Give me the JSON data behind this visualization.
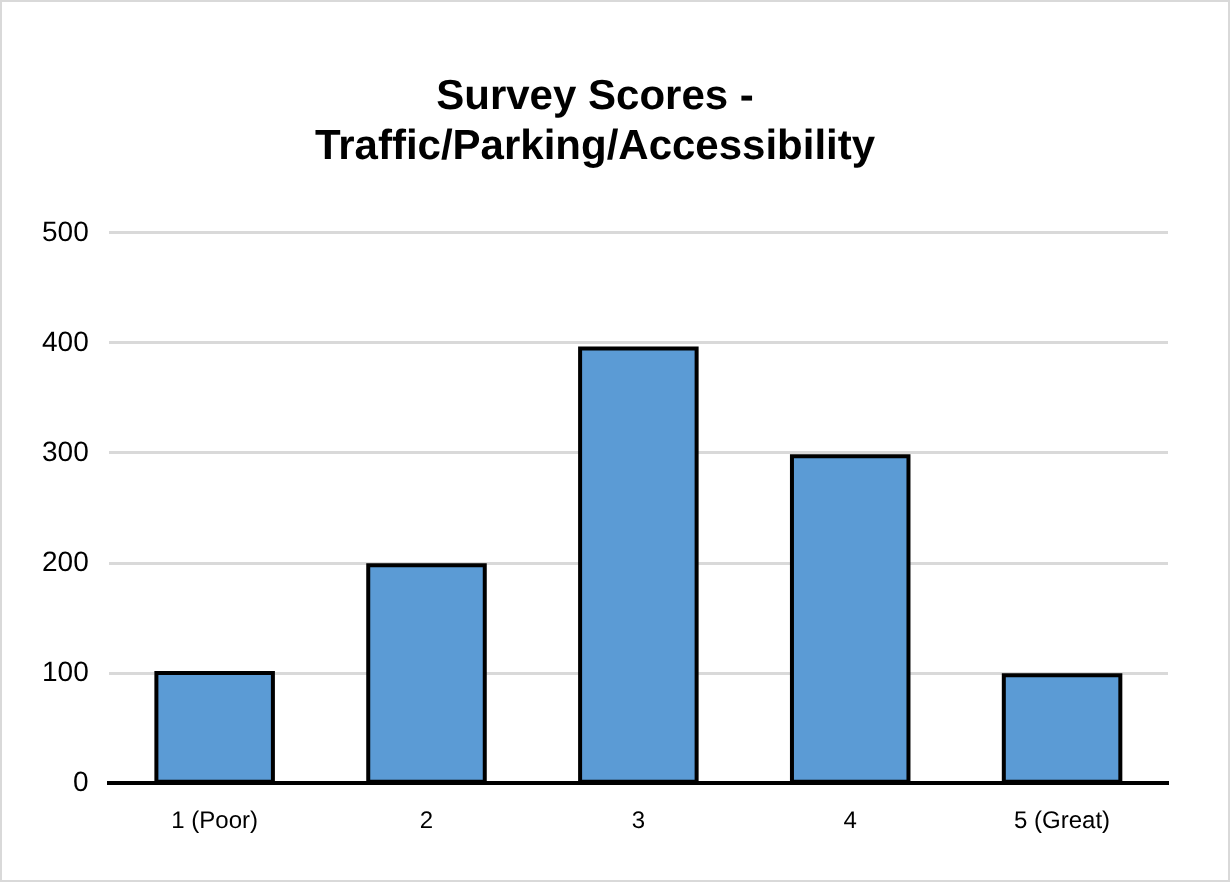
{
  "chart_data": {
    "type": "bar",
    "title": "Survey Scores - Traffic/Parking/Accessibility",
    "categories": [
      "1 (Poor)",
      "2",
      "3",
      "4",
      "5 (Great)"
    ],
    "values": [
      100,
      198,
      395,
      297,
      98
    ],
    "color": "#5b9bd5",
    "ylim": [
      0,
      500
    ],
    "yticks": [
      0,
      100,
      200,
      300,
      400,
      500
    ],
    "grid": "y",
    "legend": false
  }
}
